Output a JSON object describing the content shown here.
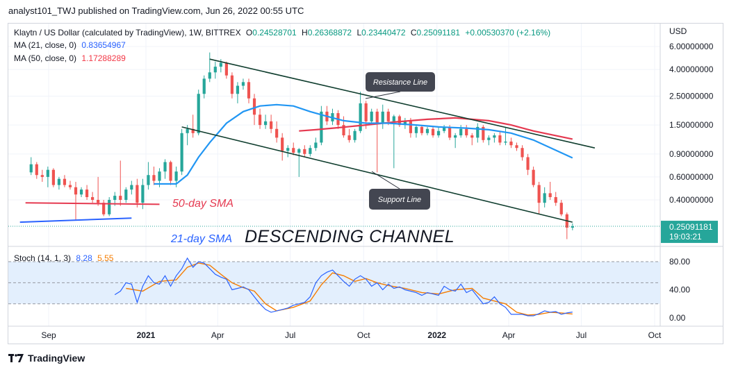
{
  "header": {
    "publisher": "analyst101_TWJ published on TradingView.com, Jun 26, 2022 00:55 UTC"
  },
  "legend": {
    "symbol": "Klaytn / US Dollar (calculated by TradingView), 1W, BITTREX",
    "o_label": "O",
    "o": "0.24528701",
    "h_label": "H",
    "h": "0.26368872",
    "l_label": "L",
    "l": "0.23440472",
    "c_label": "C",
    "c": "0.25091181",
    "change": "+0.00530370 (+2.16%)",
    "ma21_label": "MA (21, close, 0)",
    "ma21_value": "0.83654967",
    "ma50_label": "MA (50, close, 0)",
    "ma50_value": "1.17288289",
    "stoch_label": "Stoch (14, 1, 3)",
    "stoch_k": "8.28",
    "stoch_d": "5.55"
  },
  "colors": {
    "up": "#26a69a",
    "down": "#ef5350",
    "ma21": "#2196f3",
    "ma50": "#e53950",
    "channel": "#0f3d2e",
    "stoch_k": "#2962ff",
    "stoch_d": "#f57c00",
    "stoch_band": "#e3effd"
  },
  "chart_data": {
    "type": "candlestick",
    "y_scale": "log",
    "currency_label": "USD",
    "price_ticks": [
      "6.00000000",
      "4.00000000",
      "2.50000000",
      "1.50000000",
      "0.90000000",
      "0.60000000",
      "0.40000000"
    ],
    "price_tick_values": [
      6,
      4,
      2.5,
      1.5,
      0.9,
      0.6,
      0.4
    ],
    "last_price": "0.25091181",
    "countdown": "19:03:21",
    "x_ticks": [
      "Sep",
      "2021",
      "Apr",
      "Jul",
      "Oct",
      "2022",
      "Apr",
      "Jul",
      "Oct"
    ],
    "x_tick_dates": [
      "2020-09-01",
      "2021-01-01",
      "2021-04-01",
      "2021-07-01",
      "2021-10-01",
      "2022-01-01",
      "2022-04-01",
      "2022-07-01",
      "2022-10-01"
    ],
    "candles": [
      [
        "2020-08-10",
        0.65,
        0.85,
        0.62,
        0.75
      ],
      [
        "2020-08-17",
        0.75,
        0.78,
        0.58,
        0.62
      ],
      [
        "2020-08-24",
        0.62,
        0.68,
        0.55,
        0.6
      ],
      [
        "2020-08-31",
        0.6,
        0.72,
        0.5,
        0.68
      ],
      [
        "2020-09-07",
        0.68,
        0.7,
        0.5,
        0.52
      ],
      [
        "2020-09-14",
        0.52,
        0.6,
        0.48,
        0.58
      ],
      [
        "2020-09-21",
        0.58,
        0.62,
        0.5,
        0.52
      ],
      [
        "2020-09-28",
        0.52,
        0.56,
        0.48,
        0.5
      ],
      [
        "2020-10-05",
        0.5,
        0.55,
        0.28,
        0.44
      ],
      [
        "2020-10-12",
        0.44,
        0.5,
        0.42,
        0.48
      ],
      [
        "2020-10-19",
        0.48,
        0.52,
        0.4,
        0.42
      ],
      [
        "2020-10-26",
        0.42,
        0.46,
        0.38,
        0.4
      ],
      [
        "2020-11-02",
        0.4,
        0.6,
        0.36,
        0.38
      ],
      [
        "2020-11-09",
        0.38,
        0.4,
        0.3,
        0.31
      ],
      [
        "2020-11-16",
        0.31,
        0.42,
        0.3,
        0.4
      ],
      [
        "2020-11-23",
        0.4,
        0.46,
        0.36,
        0.43
      ],
      [
        "2020-11-30",
        0.43,
        0.8,
        0.36,
        0.4
      ],
      [
        "2020-12-07",
        0.4,
        0.5,
        0.38,
        0.48
      ],
      [
        "2020-12-14",
        0.48,
        0.56,
        0.44,
        0.52
      ],
      [
        "2020-12-21",
        0.52,
        0.58,
        0.35,
        0.38
      ],
      [
        "2020-12-28",
        0.38,
        0.58,
        0.34,
        0.52
      ],
      [
        "2021-01-04",
        0.52,
        0.78,
        0.48,
        0.62
      ],
      [
        "2021-01-11",
        0.62,
        0.72,
        0.52,
        0.56
      ],
      [
        "2021-01-18",
        0.56,
        0.7,
        0.5,
        0.66
      ],
      [
        "2021-01-25",
        0.66,
        0.82,
        0.58,
        0.78
      ],
      [
        "2021-02-01",
        0.78,
        0.8,
        0.52,
        0.56
      ],
      [
        "2021-02-08",
        0.56,
        0.72,
        0.5,
        0.66
      ],
      [
        "2021-02-15",
        0.66,
        1.4,
        0.62,
        1.3
      ],
      [
        "2021-02-22",
        1.3,
        1.5,
        1.05,
        1.4
      ],
      [
        "2021-03-01",
        1.4,
        1.8,
        1.2,
        1.3
      ],
      [
        "2021-03-08",
        1.3,
        2.8,
        1.25,
        2.6
      ],
      [
        "2021-03-15",
        2.6,
        3.6,
        2.4,
        3.4
      ],
      [
        "2021-03-22",
        3.4,
        5.4,
        3.2,
        3.8
      ],
      [
        "2021-03-29",
        3.8,
        4.6,
        3.4,
        4.2
      ],
      [
        "2021-04-05",
        4.2,
        4.8,
        3.8,
        4.5
      ],
      [
        "2021-04-12",
        4.5,
        4.6,
        3.4,
        3.6
      ],
      [
        "2021-04-19",
        3.6,
        3.8,
        2.4,
        2.6
      ],
      [
        "2021-04-26",
        2.6,
        3.2,
        2.2,
        3.0
      ],
      [
        "2021-05-03",
        3.0,
        3.4,
        2.8,
        3.2
      ],
      [
        "2021-05-10",
        3.2,
        3.4,
        2.2,
        2.4
      ],
      [
        "2021-05-17",
        2.4,
        2.6,
        1.5,
        1.8
      ],
      [
        "2021-05-24",
        1.8,
        2.0,
        1.4,
        1.5
      ],
      [
        "2021-05-31",
        1.5,
        1.8,
        1.4,
        1.6
      ],
      [
        "2021-06-07",
        1.6,
        1.8,
        1.3,
        1.4
      ],
      [
        "2021-06-14",
        1.4,
        1.6,
        1.1,
        1.2
      ],
      [
        "2021-06-21",
        1.2,
        1.3,
        0.8,
        0.95
      ],
      [
        "2021-06-28",
        0.95,
        1.05,
        0.85,
        1.0
      ],
      [
        "2021-07-05",
        1.0,
        1.1,
        0.88,
        0.92
      ],
      [
        "2021-07-12",
        0.92,
        1.0,
        0.6,
        0.98
      ],
      [
        "2021-07-19",
        0.98,
        1.05,
        0.86,
        0.9
      ],
      [
        "2021-07-26",
        0.9,
        1.05,
        0.86,
        1.0
      ],
      [
        "2021-08-02",
        1.0,
        1.2,
        0.95,
        1.1
      ],
      [
        "2021-08-09",
        1.1,
        2.1,
        1.05,
        1.9
      ],
      [
        "2021-08-16",
        1.9,
        2.1,
        1.5,
        1.6
      ],
      [
        "2021-08-23",
        1.6,
        2.0,
        1.5,
        1.85
      ],
      [
        "2021-08-30",
        1.85,
        1.95,
        1.4,
        1.5
      ],
      [
        "2021-09-06",
        1.5,
        1.75,
        1.2,
        1.25
      ],
      [
        "2021-09-13",
        1.25,
        1.4,
        1.1,
        1.15
      ],
      [
        "2021-09-20",
        1.15,
        1.4,
        1.1,
        1.35
      ],
      [
        "2021-09-27",
        1.35,
        2.7,
        1.3,
        2.2
      ],
      [
        "2021-10-04",
        2.2,
        2.3,
        1.4,
        1.6
      ],
      [
        "2021-10-11",
        1.6,
        2.0,
        1.5,
        1.9
      ],
      [
        "2021-10-18",
        1.9,
        2.0,
        0.65,
        1.55
      ],
      [
        "2021-10-25",
        1.55,
        2.15,
        1.4,
        1.9
      ],
      [
        "2021-11-01",
        1.9,
        2.0,
        1.5,
        1.6
      ],
      [
        "2021-11-08",
        1.6,
        1.8,
        0.7,
        1.75
      ],
      [
        "2021-11-15",
        1.75,
        1.8,
        1.45,
        1.5
      ],
      [
        "2021-11-22",
        1.5,
        1.7,
        1.4,
        1.6
      ],
      [
        "2021-11-29",
        1.6,
        1.7,
        1.2,
        1.3
      ],
      [
        "2021-12-06",
        1.3,
        1.5,
        1.2,
        1.45
      ],
      [
        "2021-12-13",
        1.45,
        1.5,
        1.25,
        1.3
      ],
      [
        "2021-12-20",
        1.3,
        1.45,
        1.25,
        1.4
      ],
      [
        "2021-12-27",
        1.4,
        1.45,
        1.2,
        1.25
      ],
      [
        "2022-01-03",
        1.25,
        1.45,
        1.2,
        1.35
      ],
      [
        "2022-01-10",
        1.35,
        1.5,
        1.3,
        1.45
      ],
      [
        "2022-01-17",
        1.45,
        1.5,
        1.15,
        1.2
      ],
      [
        "2022-01-24",
        1.2,
        1.3,
        1.0,
        1.25
      ],
      [
        "2022-01-31",
        1.25,
        1.5,
        1.2,
        1.4
      ],
      [
        "2022-02-07",
        1.4,
        1.5,
        1.2,
        1.25
      ],
      [
        "2022-02-14",
        1.25,
        1.3,
        1.05,
        1.2
      ],
      [
        "2022-02-21",
        1.2,
        1.55,
        1.1,
        1.45
      ],
      [
        "2022-02-28",
        1.45,
        1.5,
        1.1,
        1.15
      ],
      [
        "2022-03-07",
        1.15,
        1.25,
        1.05,
        1.2
      ],
      [
        "2022-03-14",
        1.2,
        1.3,
        1.1,
        1.25
      ],
      [
        "2022-03-21",
        1.25,
        1.35,
        1.05,
        1.1
      ],
      [
        "2022-03-28",
        1.1,
        1.45,
        1.05,
        1.12
      ],
      [
        "2022-04-04",
        1.12,
        1.2,
        1.0,
        1.05
      ],
      [
        "2022-04-11",
        1.05,
        1.1,
        0.95,
        1.0
      ],
      [
        "2022-04-18",
        1.0,
        1.05,
        0.8,
        0.85
      ],
      [
        "2022-04-25",
        0.85,
        0.9,
        0.62,
        0.68
      ],
      [
        "2022-05-02",
        0.68,
        0.72,
        0.5,
        0.52
      ],
      [
        "2022-05-09",
        0.52,
        0.55,
        0.31,
        0.38
      ],
      [
        "2022-05-16",
        0.38,
        0.5,
        0.35,
        0.45
      ],
      [
        "2022-05-23",
        0.45,
        0.55,
        0.4,
        0.42
      ],
      [
        "2022-05-30",
        0.42,
        0.46,
        0.36,
        0.38
      ],
      [
        "2022-06-06",
        0.38,
        0.4,
        0.3,
        0.31
      ],
      [
        "2022-06-13",
        0.31,
        0.32,
        0.2,
        0.245
      ],
      [
        "2022-06-20",
        0.245,
        0.264,
        0.234,
        0.251
      ]
    ],
    "ma21": [
      [
        "2021-01-11",
        0.53
      ],
      [
        "2021-02-08",
        0.53
      ],
      [
        "2021-02-22",
        0.62
      ],
      [
        "2021-03-08",
        0.85
      ],
      [
        "2021-03-22",
        1.1
      ],
      [
        "2021-04-12",
        1.55
      ],
      [
        "2021-05-03",
        1.9
      ],
      [
        "2021-05-24",
        2.1
      ],
      [
        "2021-06-14",
        2.15
      ],
      [
        "2021-07-05",
        2.1
      ],
      [
        "2021-07-26",
        1.9
      ],
      [
        "2021-08-16",
        1.75
      ],
      [
        "2021-09-06",
        1.62
      ],
      [
        "2021-10-04",
        1.55
      ],
      [
        "2021-11-01",
        1.55
      ],
      [
        "2021-12-06",
        1.5
      ],
      [
        "2022-01-03",
        1.45
      ],
      [
        "2022-02-07",
        1.42
      ],
      [
        "2022-03-07",
        1.38
      ],
      [
        "2022-04-04",
        1.3
      ],
      [
        "2022-05-02",
        1.15
      ],
      [
        "2022-06-20",
        0.84
      ]
    ],
    "ma50": [
      [
        "2021-07-12",
        1.35
      ],
      [
        "2021-08-02",
        1.38
      ],
      [
        "2021-08-30",
        1.43
      ],
      [
        "2021-10-04",
        1.5
      ],
      [
        "2021-11-08",
        1.58
      ],
      [
        "2021-12-20",
        1.66
      ],
      [
        "2022-01-24",
        1.7
      ],
      [
        "2022-03-07",
        1.62
      ],
      [
        "2022-04-04",
        1.5
      ],
      [
        "2022-05-02",
        1.35
      ],
      [
        "2022-06-20",
        1.17
      ]
    ],
    "stoch_ticks": [
      "80.00",
      "40.00",
      "0.00"
    ],
    "stoch_tick_values": [
      80,
      40,
      0
    ],
    "stoch_band": [
      20,
      80
    ],
    "stoch_k": [
      [
        "2020-11-23",
        33
      ],
      [
        "2020-11-30",
        38
      ],
      [
        "2020-12-07",
        50
      ],
      [
        "2020-12-14",
        48
      ],
      [
        "2020-12-21",
        22
      ],
      [
        "2020-12-28",
        45
      ],
      [
        "2021-01-04",
        60
      ],
      [
        "2021-01-11",
        50
      ],
      [
        "2021-01-18",
        48
      ],
      [
        "2021-01-25",
        60
      ],
      [
        "2021-02-01",
        45
      ],
      [
        "2021-02-08",
        60
      ],
      [
        "2021-02-15",
        70
      ],
      [
        "2021-02-22",
        85
      ],
      [
        "2021-03-01",
        72
      ],
      [
        "2021-03-08",
        80
      ],
      [
        "2021-03-15",
        78
      ],
      [
        "2021-03-22",
        70
      ],
      [
        "2021-03-29",
        62
      ],
      [
        "2021-04-05",
        58
      ],
      [
        "2021-04-12",
        55
      ],
      [
        "2021-04-19",
        40
      ],
      [
        "2021-04-26",
        42
      ],
      [
        "2021-05-03",
        44
      ],
      [
        "2021-05-10",
        40
      ],
      [
        "2021-05-17",
        30
      ],
      [
        "2021-05-24",
        20
      ],
      [
        "2021-05-31",
        12
      ],
      [
        "2021-06-07",
        8
      ],
      [
        "2021-06-14",
        10
      ],
      [
        "2021-06-21",
        12
      ],
      [
        "2021-06-28",
        14
      ],
      [
        "2021-07-05",
        18
      ],
      [
        "2021-07-12",
        20
      ],
      [
        "2021-07-19",
        22
      ],
      [
        "2021-07-26",
        30
      ],
      [
        "2021-08-02",
        50
      ],
      [
        "2021-08-09",
        60
      ],
      [
        "2021-08-16",
        65
      ],
      [
        "2021-08-23",
        68
      ],
      [
        "2021-08-30",
        60
      ],
      [
        "2021-09-06",
        52
      ],
      [
        "2021-09-13",
        45
      ],
      [
        "2021-09-20",
        55
      ],
      [
        "2021-09-27",
        60
      ],
      [
        "2021-10-04",
        55
      ],
      [
        "2021-10-11",
        45
      ],
      [
        "2021-10-18",
        50
      ],
      [
        "2021-10-25",
        40
      ],
      [
        "2021-11-01",
        48
      ],
      [
        "2021-11-08",
        42
      ],
      [
        "2021-11-15",
        44
      ],
      [
        "2021-11-22",
        40
      ],
      [
        "2021-11-29",
        38
      ],
      [
        "2021-12-06",
        36
      ],
      [
        "2021-12-13",
        32
      ],
      [
        "2021-12-20",
        36
      ],
      [
        "2021-12-27",
        34
      ],
      [
        "2022-01-03",
        32
      ],
      [
        "2022-01-10",
        45
      ],
      [
        "2022-01-17",
        40
      ],
      [
        "2022-01-24",
        38
      ],
      [
        "2022-01-31",
        48
      ],
      [
        "2022-02-07",
        36
      ],
      [
        "2022-02-14",
        40
      ],
      [
        "2022-02-21",
        30
      ],
      [
        "2022-02-28",
        20
      ],
      [
        "2022-03-07",
        22
      ],
      [
        "2022-03-14",
        30
      ],
      [
        "2022-03-21",
        20
      ],
      [
        "2022-03-28",
        15
      ],
      [
        "2022-04-04",
        5
      ],
      [
        "2022-04-11",
        5
      ],
      [
        "2022-04-18",
        5
      ],
      [
        "2022-04-25",
        3
      ],
      [
        "2022-05-02",
        3
      ],
      [
        "2022-05-09",
        6
      ],
      [
        "2022-05-16",
        10
      ],
      [
        "2022-05-23",
        8
      ],
      [
        "2022-05-30",
        9
      ],
      [
        "2022-06-06",
        5
      ],
      [
        "2022-06-13",
        7
      ],
      [
        "2022-06-20",
        8.28
      ]
    ],
    "stoch_d": [
      [
        "2020-12-07",
        42
      ],
      [
        "2020-12-28",
        38
      ],
      [
        "2021-01-18",
        52
      ],
      [
        "2021-02-08",
        54
      ],
      [
        "2021-02-22",
        72
      ],
      [
        "2021-03-08",
        78
      ],
      [
        "2021-03-22",
        75
      ],
      [
        "2021-04-05",
        62
      ],
      [
        "2021-04-19",
        50
      ],
      [
        "2021-05-03",
        43
      ],
      [
        "2021-05-17",
        38
      ],
      [
        "2021-05-31",
        20
      ],
      [
        "2021-06-14",
        10
      ],
      [
        "2021-07-05",
        15
      ],
      [
        "2021-07-26",
        24
      ],
      [
        "2021-08-09",
        47
      ],
      [
        "2021-08-23",
        64
      ],
      [
        "2021-09-06",
        60
      ],
      [
        "2021-09-20",
        52
      ],
      [
        "2021-10-04",
        56
      ],
      [
        "2021-10-18",
        50
      ],
      [
        "2021-11-01",
        46
      ],
      [
        "2021-11-22",
        42
      ],
      [
        "2021-12-13",
        36
      ],
      [
        "2022-01-03",
        34
      ],
      [
        "2022-01-24",
        40
      ],
      [
        "2022-02-14",
        42
      ],
      [
        "2022-02-28",
        28
      ],
      [
        "2022-03-14",
        24
      ],
      [
        "2022-03-28",
        20
      ],
      [
        "2022-04-11",
        8
      ],
      [
        "2022-04-25",
        4
      ],
      [
        "2022-05-09",
        5
      ],
      [
        "2022-05-23",
        8
      ],
      [
        "2022-06-06",
        7
      ],
      [
        "2022-06-20",
        5.55
      ]
    ],
    "annotations": {
      "resistance": "Resistance Line",
      "support": "Support Line",
      "ma50_text": "50-day SMA",
      "ma21_text": "21-day SMA",
      "channel_text": "DESCENDING CHANNEL"
    },
    "resistance_line": [
      [
        "2021-03-22",
        4.8
      ],
      [
        "2022-07-18",
        1.0
      ]
    ],
    "support_line": [
      [
        "2021-02-15",
        1.45
      ],
      [
        "2022-06-20",
        0.27
      ]
    ],
    "red_flat_line": [
      [
        "2020-08-03",
        0.38
      ],
      [
        "2021-01-18",
        0.37
      ]
    ],
    "blue_flat_line": [
      [
        "2020-07-27",
        0.27
      ],
      [
        "2020-12-14",
        0.29
      ]
    ]
  },
  "footer": {
    "brand": "TradingView"
  }
}
